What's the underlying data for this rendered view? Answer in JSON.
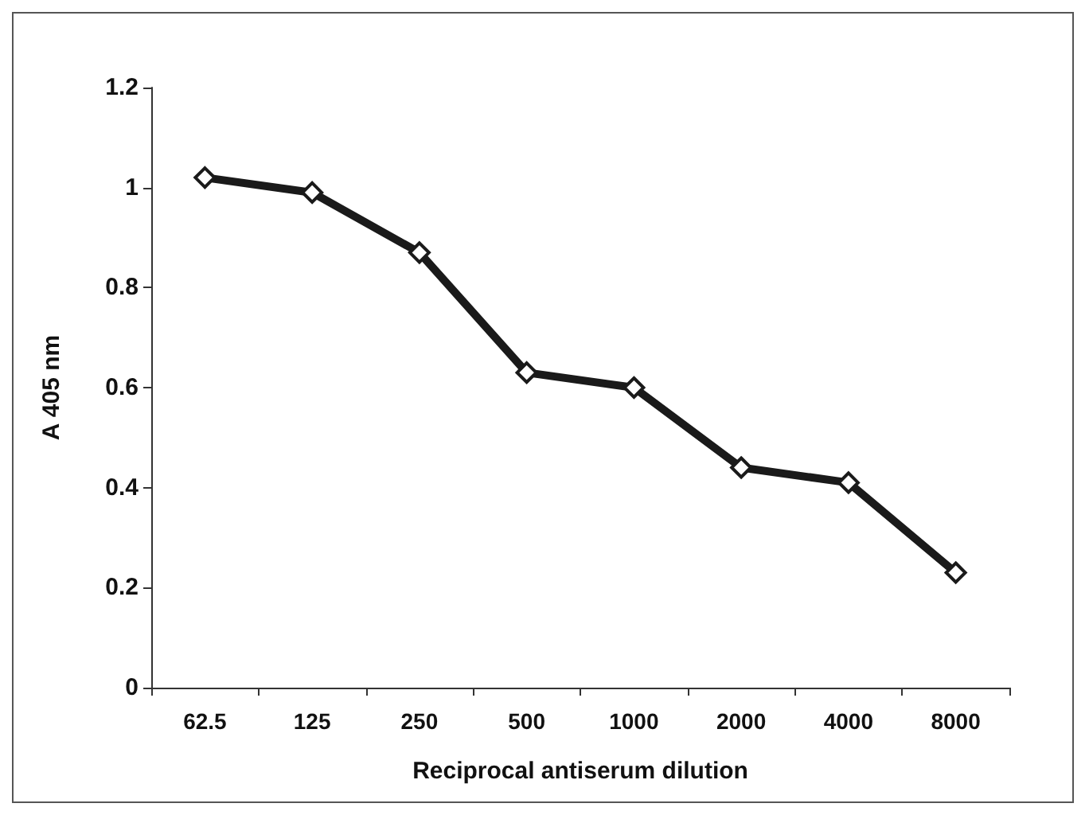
{
  "chart_data": {
    "type": "line",
    "xlabel": "Reciprocal antiserum dilution",
    "ylabel": "A 405 nm",
    "categories": [
      "62.5",
      "125",
      "250",
      "500",
      "1000",
      "2000",
      "4000",
      "8000"
    ],
    "series": [
      {
        "color": "#1a1a1a",
        "values": [
          1.02,
          0.99,
          0.87,
          0.63,
          0.6,
          0.44,
          0.41,
          0.23
        ]
      }
    ],
    "ylim": [
      0,
      1.2
    ],
    "yticks": [
      0,
      0.2,
      0.4,
      0.6,
      0.8,
      1,
      1.2
    ],
    "grid": false,
    "marker": "diamond",
    "line_style": "solid"
  }
}
